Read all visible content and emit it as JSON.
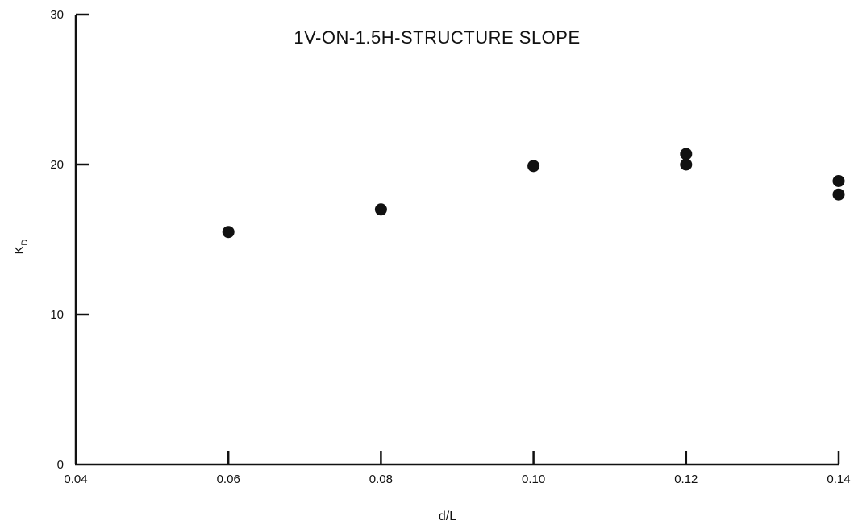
{
  "chart_data": {
    "type": "scatter",
    "title": "1V-ON-1.5H-STRUCTURE SLOPE",
    "xlabel": "d/L",
    "ylabel": {
      "main": "K",
      "subscript": "D"
    },
    "xlim": [
      0.04,
      0.14
    ],
    "ylim": [
      0,
      30
    ],
    "x_ticks": [
      {
        "value": 0.04,
        "label": "0.04"
      },
      {
        "value": 0.06,
        "label": "0.06"
      },
      {
        "value": 0.08,
        "label": "0.08"
      },
      {
        "value": 0.1,
        "label": "0.10"
      },
      {
        "value": 0.12,
        "label": "0.12"
      },
      {
        "value": 0.14,
        "label": "0.14"
      }
    ],
    "y_ticks": [
      {
        "value": 0,
        "label": "0"
      },
      {
        "value": 10,
        "label": "10"
      },
      {
        "value": 20,
        "label": "20"
      },
      {
        "value": 30,
        "label": "30"
      }
    ],
    "grid": false,
    "legend": "none",
    "series": [
      {
        "color": "#111111",
        "points": [
          {
            "x": 0.06,
            "y": 15.5
          },
          {
            "x": 0.08,
            "y": 17.0
          },
          {
            "x": 0.1,
            "y": 19.9
          },
          {
            "x": 0.12,
            "y": 20.7
          },
          {
            "x": 0.12,
            "y": 20.0
          },
          {
            "x": 0.14,
            "y": 18.9
          },
          {
            "x": 0.14,
            "y": 18.0
          }
        ]
      }
    ]
  }
}
